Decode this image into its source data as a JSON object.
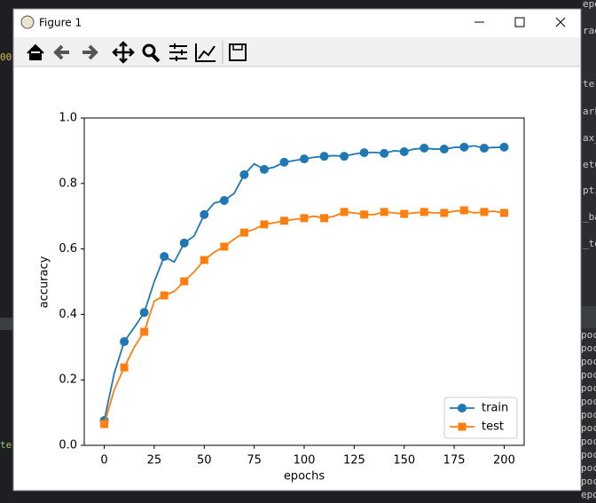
{
  "window": {
    "title": "Figure 1"
  },
  "background": {
    "left": [
      "00",
      "te"
    ],
    "right_top": [
      "epoc",
      "rad",
      "ter",
      "ark",
      "ax_",
      "etu",
      "pti",
      "_ba",
      "_te"
    ],
    "right_bottom": [
      "poch",
      "poch",
      "poch",
      "poch",
      "poch",
      "poch",
      "poch",
      "poch",
      "poch",
      "poch",
      "poch",
      "poch",
      "epoch"
    ]
  },
  "chart_data": {
    "type": "line",
    "xlabel": "epochs",
    "ylabel": "accuracy",
    "x": [
      0,
      5,
      10,
      15,
      20,
      25,
      30,
      35,
      40,
      45,
      50,
      55,
      60,
      65,
      70,
      75,
      80,
      85,
      90,
      95,
      100,
      105,
      110,
      115,
      120,
      125,
      130,
      135,
      140,
      145,
      150,
      155,
      160,
      165,
      170,
      175,
      180,
      185,
      190,
      195,
      200
    ],
    "series": [
      {
        "name": "train",
        "color": "#1f77b4",
        "marker": "circle",
        "markevery": 2,
        "values": [
          0.076,
          0.22,
          0.317,
          0.36,
          0.406,
          0.5,
          0.577,
          0.56,
          0.618,
          0.64,
          0.705,
          0.74,
          0.748,
          0.77,
          0.827,
          0.86,
          0.843,
          0.85,
          0.865,
          0.87,
          0.875,
          0.88,
          0.883,
          0.885,
          0.883,
          0.89,
          0.894,
          0.895,
          0.892,
          0.9,
          0.897,
          0.905,
          0.908,
          0.905,
          0.905,
          0.91,
          0.911,
          0.915,
          0.908,
          0.91,
          0.911
        ]
      },
      {
        "name": "test",
        "color": "#ff7f0e",
        "marker": "square",
        "markevery": 2,
        "values": [
          0.065,
          0.17,
          0.238,
          0.3,
          0.347,
          0.44,
          0.458,
          0.47,
          0.501,
          0.53,
          0.566,
          0.59,
          0.607,
          0.63,
          0.65,
          0.66,
          0.675,
          0.68,
          0.686,
          0.69,
          0.694,
          0.7,
          0.694,
          0.7,
          0.713,
          0.71,
          0.705,
          0.705,
          0.713,
          0.71,
          0.707,
          0.71,
          0.713,
          0.71,
          0.71,
          0.715,
          0.718,
          0.71,
          0.713,
          0.715,
          0.71
        ]
      }
    ],
    "xlim": [
      -10,
      210
    ],
    "ylim": [
      0,
      1
    ],
    "xticks": [
      0,
      25,
      50,
      75,
      100,
      125,
      150,
      175,
      200
    ],
    "yticks": [
      {
        "value": 0,
        "label": "0.0"
      },
      0.2,
      0.4,
      0.6,
      0.8,
      {
        "value": 1,
        "label": "1.0"
      }
    ],
    "legend": "lower right"
  }
}
